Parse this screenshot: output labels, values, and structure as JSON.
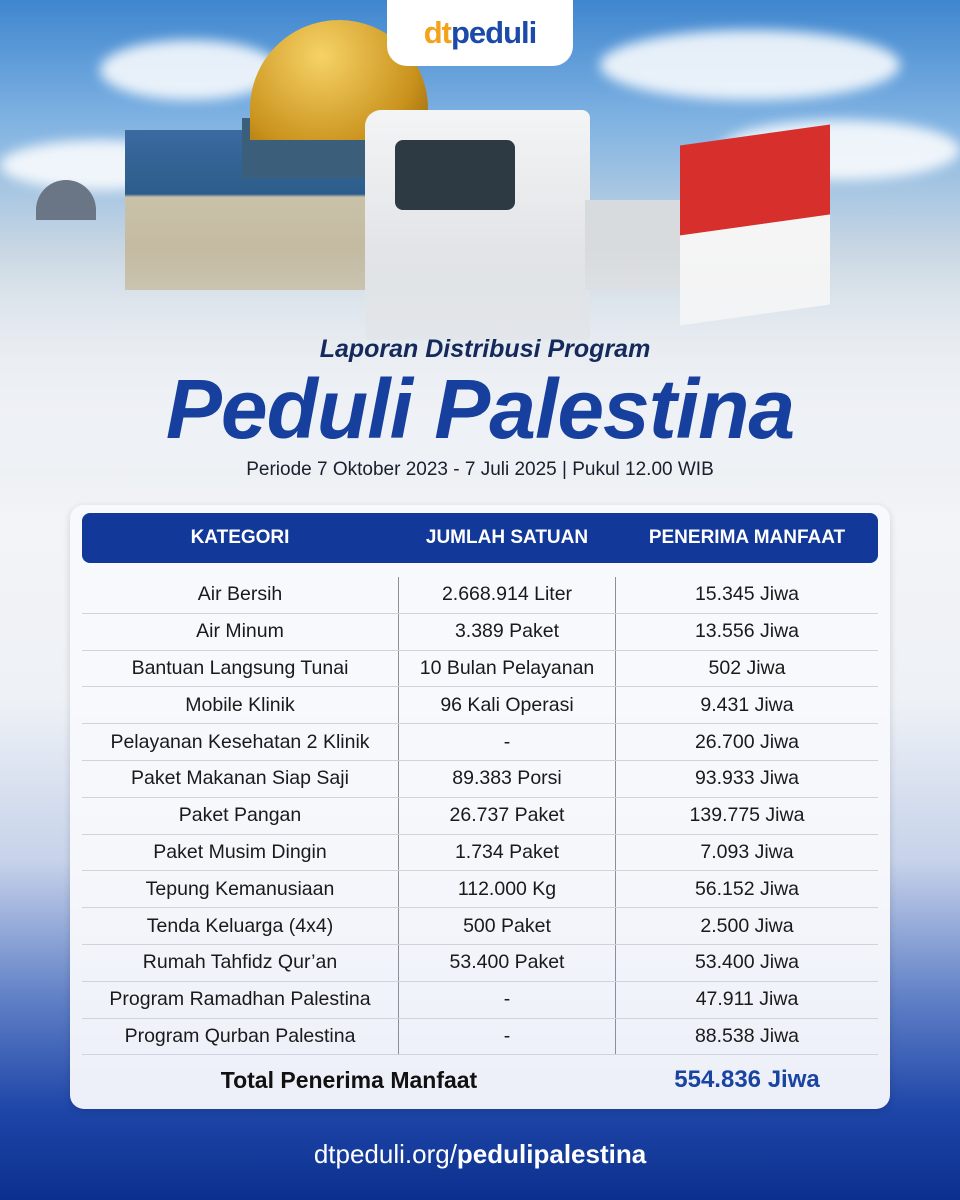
{
  "brand": {
    "logo_dt": "dt",
    "logo_peduli": "peduli",
    "colors": {
      "orange": "#f4a21b",
      "blue": "#1b4aa8",
      "header": "#12399a"
    }
  },
  "title": {
    "kicker": "Laporan Distribusi Program",
    "main": "Peduli Palestina",
    "period": "Periode 7 Oktober 2023 - 7 Juli 2025 | Pukul 12.00 WIB"
  },
  "table": {
    "headers": [
      "KATEGORI",
      "JUMLAH SATUAN",
      "PENERIMA MANFAAT"
    ],
    "rows": [
      [
        "Air Bersih",
        "2.668.914 Liter",
        "15.345 Jiwa"
      ],
      [
        "Air Minum",
        "3.389 Paket",
        "13.556 Jiwa"
      ],
      [
        "Bantuan Langsung Tunai",
        "10 Bulan Pelayanan",
        "502 Jiwa"
      ],
      [
        "Mobile Klinik",
        "96 Kali Operasi",
        "9.431 Jiwa"
      ],
      [
        "Pelayanan Kesehatan 2 Klinik",
        "-",
        "26.700 Jiwa"
      ],
      [
        "Paket Makanan Siap Saji",
        "89.383 Porsi",
        "93.933 Jiwa"
      ],
      [
        "Paket Pangan",
        "26.737 Paket",
        "139.775 Jiwa"
      ],
      [
        "Paket Musim Dingin",
        "1.734 Paket",
        "7.093 Jiwa"
      ],
      [
        "Tepung Kemanusiaan",
        "112.000 Kg",
        "56.152 Jiwa"
      ],
      [
        "Tenda Keluarga (4x4)",
        "500 Paket",
        "2.500 Jiwa"
      ],
      [
        "Rumah Tahfidz Qur’an",
        "53.400 Paket",
        "53.400 Jiwa"
      ],
      [
        "Program Ramadhan Palestina",
        "-",
        "47.911 Jiwa"
      ],
      [
        "Program Qurban Palestina",
        "-",
        "88.538 Jiwa"
      ]
    ],
    "total_label": "Total Penerima Manfaat",
    "total_value": "554.836 Jiwa"
  },
  "footer": {
    "url_prefix": "dtpeduli.org/",
    "url_path": "pedulipalestina"
  }
}
